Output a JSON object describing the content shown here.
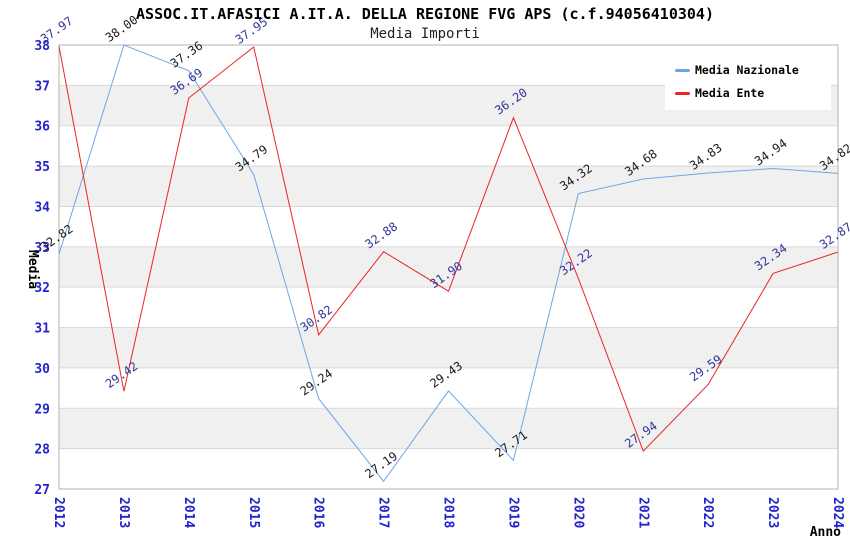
{
  "chart_data": {
    "type": "line",
    "title": "ASSOC.IT.AFASICI A.IT.A. DELLA REGIONE FVG APS (c.f.94056410304)",
    "subtitle": "Media Importi",
    "xlabel": "Anno",
    "ylabel": "Media",
    "categories": [
      "2012",
      "2013",
      "2014",
      "2015",
      "2016",
      "2017",
      "2018",
      "2019",
      "2020",
      "2021",
      "2022",
      "2023",
      "2024"
    ],
    "series": [
      {
        "name": "Media Nazionale",
        "color": "#6ca6e8",
        "label_color": "#1c1c1c",
        "values": [
          32.82,
          38.0,
          37.36,
          34.79,
          29.24,
          27.19,
          29.43,
          27.71,
          34.32,
          34.68,
          34.83,
          34.94,
          34.82
        ]
      },
      {
        "name": "Media Ente",
        "color": "#ec2424",
        "label_color": "#34349c",
        "values": [
          37.97,
          29.42,
          36.69,
          37.95,
          30.82,
          32.88,
          31.9,
          36.2,
          32.22,
          27.94,
          29.59,
          32.34,
          32.87
        ]
      }
    ],
    "ylim": [
      27,
      38
    ],
    "ytick_step": 1,
    "grid": true,
    "bands": true,
    "legend_position": "top-right",
    "colors": {
      "tick_label": "#2323cc",
      "grid_line": "#d9d9d9",
      "band_fill": "#f0f0f0",
      "plot_border": "#b3b3b3",
      "background": "#ffffff"
    }
  }
}
